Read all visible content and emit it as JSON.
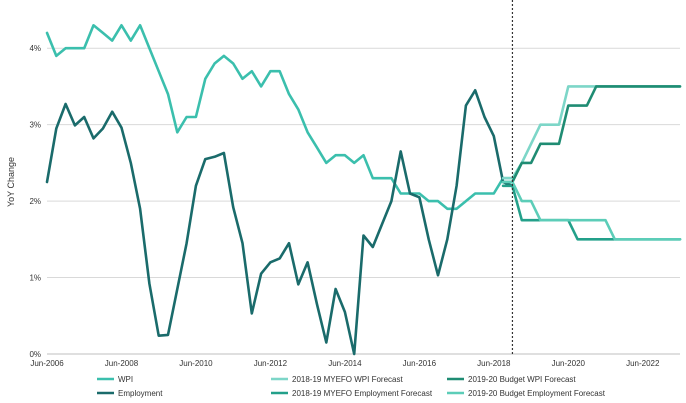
{
  "chart_data": {
    "type": "line",
    "title": "",
    "ylabel": "YoY Change",
    "xlabel": "",
    "ylim": [
      0,
      4.5
    ],
    "y_ticks": [
      {
        "value": 0,
        "label": "0%"
      },
      {
        "value": 1,
        "label": "1%"
      },
      {
        "value": 2,
        "label": "2%"
      },
      {
        "value": 3,
        "label": "3%"
      },
      {
        "value": 4,
        "label": "4%"
      }
    ],
    "xlim": [
      2006.5,
      2023.5
    ],
    "x_ticks": [
      {
        "value": 2006.5,
        "label": "Jun-2006"
      },
      {
        "value": 2008.5,
        "label": "Jun-2008"
      },
      {
        "value": 2010.5,
        "label": "Jun-2010"
      },
      {
        "value": 2012.5,
        "label": "Jun-2012"
      },
      {
        "value": 2014.5,
        "label": "Jun-2014"
      },
      {
        "value": 2016.5,
        "label": "Jun-2016"
      },
      {
        "value": 2018.5,
        "label": "Jun-2018"
      },
      {
        "value": 2020.5,
        "label": "Jun-2020"
      },
      {
        "value": 2022.5,
        "label": "Jun-2022"
      }
    ],
    "grid": "horizontal",
    "forecast_divider_x": 2019.0,
    "legend_position": "bottom",
    "colors": {
      "wpi": "#3bbfad",
      "employment": "#1a6b6b",
      "myefo_wpi": "#7dd6c8",
      "budget_wpi": "#1f8c73",
      "myefo_employment": "#23a08a",
      "budget_employment": "#5ccdb8",
      "grid": "#d9d9d9",
      "axis": "#bfbfbf",
      "divider": "#333333"
    },
    "series": [
      {
        "name": "WPI",
        "key": "wpi",
        "style": "solid",
        "x": [
          2006.5,
          2006.75,
          2007.0,
          2007.25,
          2007.5,
          2007.75,
          2008.0,
          2008.25,
          2008.5,
          2008.75,
          2009.0,
          2009.25,
          2009.5,
          2009.75,
          2010.0,
          2010.25,
          2010.5,
          2010.75,
          2011.0,
          2011.25,
          2011.5,
          2011.75,
          2012.0,
          2012.25,
          2012.5,
          2012.75,
          2013.0,
          2013.25,
          2013.5,
          2013.75,
          2014.0,
          2014.25,
          2014.5,
          2014.75,
          2015.0,
          2015.25,
          2015.5,
          2015.75,
          2016.0,
          2016.25,
          2016.5,
          2016.75,
          2017.0,
          2017.25,
          2017.5,
          2017.75,
          2018.0,
          2018.25,
          2018.5,
          2018.75,
          2019.0
        ],
        "y": [
          4.2,
          3.9,
          4.0,
          4.0,
          4.0,
          4.3,
          4.2,
          4.1,
          4.3,
          4.1,
          4.3,
          4.0,
          3.7,
          3.4,
          2.9,
          3.1,
          3.1,
          3.6,
          3.8,
          3.9,
          3.8,
          3.6,
          3.7,
          3.5,
          3.7,
          3.7,
          3.4,
          3.2,
          2.9,
          2.7,
          2.5,
          2.6,
          2.6,
          2.5,
          2.6,
          2.3,
          2.3,
          2.3,
          2.1,
          2.1,
          2.1,
          2.0,
          2.0,
          1.9,
          1.9,
          2.0,
          2.1,
          2.1,
          2.1,
          2.3,
          2.3
        ]
      },
      {
        "name": "Employment",
        "key": "employment",
        "style": "solid",
        "x": [
          2006.5,
          2006.75,
          2007.0,
          2007.25,
          2007.5,
          2007.75,
          2008.0,
          2008.25,
          2008.5,
          2008.75,
          2009.0,
          2009.25,
          2009.5,
          2009.75,
          2010.0,
          2010.25,
          2010.5,
          2010.75,
          2011.0,
          2011.25,
          2011.5,
          2011.75,
          2012.0,
          2012.25,
          2012.5,
          2012.75,
          2013.0,
          2013.25,
          2013.5,
          2013.75,
          2014.0,
          2014.25,
          2014.5,
          2014.75,
          2015.0,
          2015.25,
          2015.5,
          2015.75,
          2016.0,
          2016.25,
          2016.5,
          2016.75,
          2017.0,
          2017.25,
          2017.5,
          2017.75,
          2018.0,
          2018.25,
          2018.5,
          2018.75,
          2019.0
        ],
        "y": [
          2.25,
          2.95,
          3.27,
          2.99,
          3.1,
          2.82,
          2.95,
          3.17,
          2.96,
          2.5,
          1.9,
          0.92,
          0.24,
          0.25,
          0.85,
          1.45,
          2.2,
          2.55,
          2.58,
          2.63,
          1.92,
          1.45,
          0.53,
          1.05,
          1.2,
          1.25,
          1.45,
          0.91,
          1.2,
          0.65,
          0.15,
          0.85,
          0.55,
          0.0,
          1.55,
          1.4,
          1.7,
          2.0,
          2.65,
          2.1,
          2.05,
          1.5,
          1.03,
          1.5,
          2.2,
          3.25,
          3.45,
          3.1,
          2.85,
          2.25,
          2.2
        ]
      },
      {
        "name": "2018-19 MYEFO WPI Forecast",
        "key": "myefo_wpi",
        "style": "solid",
        "x": [
          2018.75,
          2019.0,
          2019.25,
          2019.5,
          2019.75,
          2020.0,
          2020.25,
          2020.5,
          2020.75,
          2021.0,
          2021.5,
          2022.0,
          2022.5,
          2023.0,
          2023.5
        ],
        "y": [
          2.3,
          2.3,
          2.5,
          2.75,
          3.0,
          3.0,
          3.0,
          3.5,
          3.5,
          3.5,
          3.5,
          3.5,
          3.5,
          3.5,
          3.5
        ]
      },
      {
        "name": "2019-20 Budget WPI Forecast",
        "key": "budget_wpi",
        "style": "solid",
        "x": [
          2018.75,
          2019.0,
          2019.25,
          2019.5,
          2019.75,
          2020.0,
          2020.25,
          2020.5,
          2020.75,
          2021.0,
          2021.25,
          2021.5,
          2022.0,
          2022.5,
          2023.0,
          2023.5
        ],
        "y": [
          2.25,
          2.25,
          2.5,
          2.5,
          2.75,
          2.75,
          2.75,
          3.25,
          3.25,
          3.25,
          3.5,
          3.5,
          3.5,
          3.5,
          3.5,
          3.5
        ]
      },
      {
        "name": "2018-19 MYEFO Employment Forecast",
        "key": "myefo_employment",
        "style": "solid",
        "x": [
          2018.75,
          2019.0,
          2019.25,
          2019.5,
          2019.75,
          2020.0,
          2020.25,
          2020.5,
          2020.75,
          2021.0,
          2021.25,
          2021.5,
          2022.0,
          2022.5,
          2023.0,
          2023.5
        ],
        "y": [
          2.2,
          2.2,
          1.75,
          1.75,
          1.75,
          1.75,
          1.75,
          1.75,
          1.5,
          1.5,
          1.5,
          1.5,
          1.5,
          1.5,
          1.5,
          1.5
        ]
      },
      {
        "name": "2019-20 Budget Employment Forecast",
        "key": "budget_employment",
        "style": "solid",
        "x": [
          2018.75,
          2019.0,
          2019.25,
          2019.5,
          2019.75,
          2020.0,
          2020.25,
          2020.5,
          2020.75,
          2021.0,
          2021.25,
          2021.5,
          2021.75,
          2022.0,
          2022.5,
          2023.0,
          2023.5
        ],
        "y": [
          2.25,
          2.25,
          2.0,
          2.0,
          1.75,
          1.75,
          1.75,
          1.75,
          1.75,
          1.75,
          1.75,
          1.75,
          1.5,
          1.5,
          1.5,
          1.5,
          1.5
        ]
      }
    ],
    "legend": [
      {
        "label": "WPI",
        "key": "wpi"
      },
      {
        "label": "2018-19 MYEFO WPI Forecast",
        "key": "myefo_wpi"
      },
      {
        "label": "2019-20 Budget WPI Forecast",
        "key": "budget_wpi"
      },
      {
        "label": "Employment",
        "key": "employment"
      },
      {
        "label": "2018-19 MYEFO Employment Forecast",
        "key": "myefo_employment"
      },
      {
        "label": "2019-20 Budget Employment Forecast",
        "key": "budget_employment"
      }
    ]
  }
}
